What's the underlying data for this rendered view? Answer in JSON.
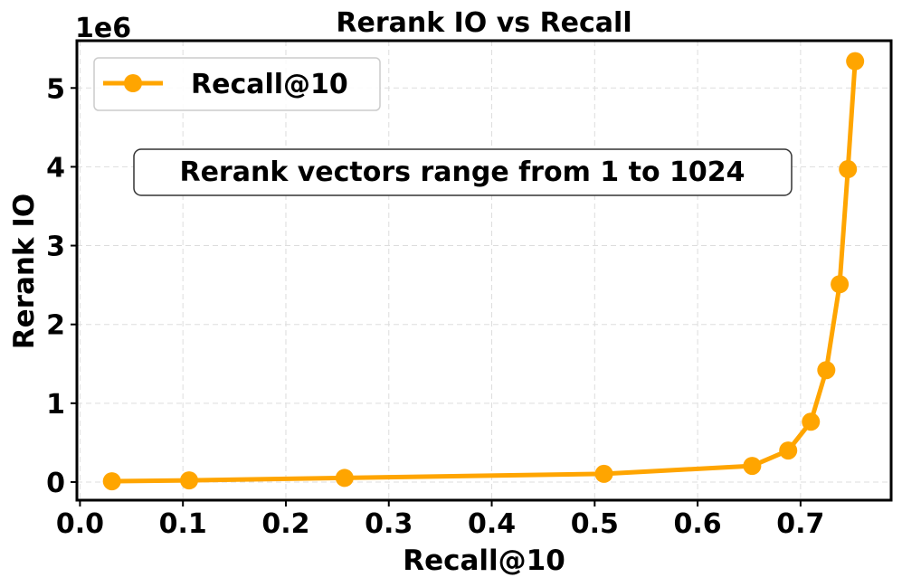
{
  "chart_data": {
    "type": "line",
    "title": "Rerank IO vs Recall",
    "xlabel": "Recall@10",
    "ylabel": "Rerank IO",
    "y_scale_label": "1e6",
    "xlim": [
      -0.003,
      0.788
    ],
    "ylim": [
      -230000,
      5600000
    ],
    "xticks": [
      0.0,
      0.1,
      0.2,
      0.3,
      0.4,
      0.5,
      0.6,
      0.7
    ],
    "xtick_labels": [
      "0.0",
      "0.1",
      "0.2",
      "0.3",
      "0.4",
      "0.5",
      "0.6",
      "0.7"
    ],
    "yticks": [
      0,
      1000000,
      2000000,
      3000000,
      4000000,
      5000000
    ],
    "ytick_labels": [
      "0",
      "1",
      "2",
      "3",
      "4",
      "5"
    ],
    "grid": true,
    "legend_position": "upper-left",
    "series": [
      {
        "name": "Recall@10",
        "color": "#FFA500",
        "marker": "circle",
        "x": [
          0.031,
          0.106,
          0.257,
          0.509,
          0.653,
          0.688,
          0.71,
          0.725,
          0.738,
          0.746,
          0.753
        ],
        "y": [
          10000,
          21000,
          52000,
          104000,
          205000,
          400000,
          765000,
          1420000,
          2510000,
          3970000,
          5340000
        ]
      }
    ],
    "annotation": "Rerank vectors range from 1 to 1024"
  }
}
